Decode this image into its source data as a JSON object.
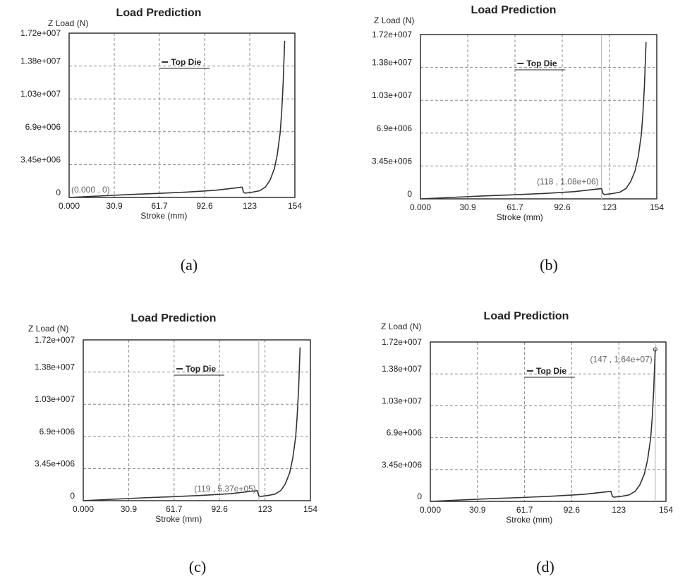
{
  "colors": {
    "curve": "#333333",
    "grid": "#8a8a8a",
    "frame": "#222222",
    "cursor": "#bdbdbd",
    "cursor_label": "#666666"
  },
  "chart_data": [
    {
      "id": "a",
      "caption": "(a)",
      "type": "line",
      "title": "Load Prediction",
      "ylabel": "Z Load (N)",
      "xlabel": "Stroke (mm)",
      "legend": "Top Die",
      "legend_position": "top-center",
      "grid": true,
      "xlim": [
        0,
        154
      ],
      "ylim": [
        0,
        17200000
      ],
      "x_ticks": [
        "0.000",
        "30.9",
        "61.7",
        "92.6",
        "123",
        "154"
      ],
      "y_ticks": [
        "0",
        "3.45e+006",
        "6.9e+006",
        "1.03e+007",
        "1.38e+007",
        "1.72e+007"
      ],
      "cursor": {
        "label": "(0.000 , 0)",
        "x": 0,
        "y": 0
      },
      "series": [
        {
          "x": [
            0,
            20,
            40,
            60,
            80,
            100,
            118,
            119,
            120,
            125,
            130,
            134,
            137,
            140,
            142,
            144,
            145,
            146,
            147
          ],
          "y": [
            0,
            150000,
            300000,
            420000,
            560000,
            750000,
            1080000,
            537000,
            450000,
            550000,
            700000,
            1100000,
            1800000,
            3000000,
            4500000,
            6800000,
            9000000,
            12000000,
            16400000
          ]
        }
      ]
    },
    {
      "id": "b",
      "caption": "(b)",
      "type": "line",
      "title": "Load Prediction",
      "ylabel": "Z Load (N)",
      "xlabel": "Stroke (mm)",
      "legend": "Top Die",
      "legend_position": "top-center",
      "grid": true,
      "xlim": [
        0,
        154
      ],
      "ylim": [
        0,
        17200000
      ],
      "x_ticks": [
        "0.000",
        "30.9",
        "61.7",
        "92.6",
        "123",
        "154"
      ],
      "y_ticks": [
        "0",
        "3.45e+006",
        "6.9e+006",
        "1.03e+007",
        "1.38e+007",
        "1.72e+007"
      ],
      "cursor": {
        "label": "(118 , 1.08e+06)",
        "x": 118,
        "y": 1080000
      },
      "series": [
        {
          "x": [
            0,
            20,
            40,
            60,
            80,
            100,
            118,
            119,
            120,
            125,
            130,
            134,
            137,
            140,
            142,
            144,
            145,
            146,
            147
          ],
          "y": [
            0,
            150000,
            300000,
            420000,
            560000,
            750000,
            1080000,
            537000,
            450000,
            550000,
            700000,
            1100000,
            1800000,
            3000000,
            4500000,
            6800000,
            9000000,
            12000000,
            16400000
          ]
        }
      ]
    },
    {
      "id": "c",
      "caption": "(c)",
      "type": "line",
      "title": "Load Prediction",
      "ylabel": "Z Load (N)",
      "xlabel": "Stroke (mm)",
      "legend": "Top Die",
      "legend_position": "top-center",
      "grid": true,
      "xlim": [
        0,
        154
      ],
      "ylim": [
        0,
        17200000
      ],
      "x_ticks": [
        "0.000",
        "30.9",
        "61.7",
        "92.6",
        "123",
        "154"
      ],
      "y_ticks": [
        "0",
        "3.45e+006",
        "6.9e+006",
        "1.03e+007",
        "1.38e+007",
        "1.72e+007"
      ],
      "cursor": {
        "label": "(119 , 5.37e+05)",
        "x": 119,
        "y": 537000
      },
      "series": [
        {
          "x": [
            0,
            20,
            40,
            60,
            80,
            100,
            118,
            119,
            120,
            125,
            130,
            134,
            137,
            140,
            142,
            144,
            145,
            146,
            147
          ],
          "y": [
            0,
            150000,
            300000,
            420000,
            560000,
            750000,
            1080000,
            537000,
            450000,
            550000,
            700000,
            1100000,
            1800000,
            3000000,
            4500000,
            6800000,
            9000000,
            12000000,
            16400000
          ]
        }
      ]
    },
    {
      "id": "d",
      "caption": "(d)",
      "type": "line",
      "title": "Load Prediction",
      "ylabel": "Z Load (N)",
      "xlabel": "Stroke (mm)",
      "legend": "Top Die",
      "legend_position": "top-center",
      "grid": true,
      "xlim": [
        0,
        154
      ],
      "ylim": [
        0,
        17200000
      ],
      "x_ticks": [
        "0.000",
        "30.9",
        "61.7",
        "92.6",
        "123",
        "154"
      ],
      "y_ticks": [
        "0",
        "3.45e+006",
        "6.9e+006",
        "1.03e+007",
        "1.38e+007",
        "1.72e+007"
      ],
      "cursor": {
        "label": "(147 , 1.64e+07)",
        "x": 147,
        "y": 16400000
      },
      "series": [
        {
          "x": [
            0,
            20,
            40,
            60,
            80,
            100,
            118,
            119,
            120,
            125,
            130,
            134,
            137,
            140,
            142,
            144,
            145,
            146,
            147
          ],
          "y": [
            0,
            150000,
            300000,
            420000,
            560000,
            750000,
            1080000,
            537000,
            450000,
            550000,
            700000,
            1100000,
            1800000,
            3000000,
            4500000,
            6800000,
            9000000,
            12000000,
            16400000
          ]
        }
      ]
    }
  ]
}
